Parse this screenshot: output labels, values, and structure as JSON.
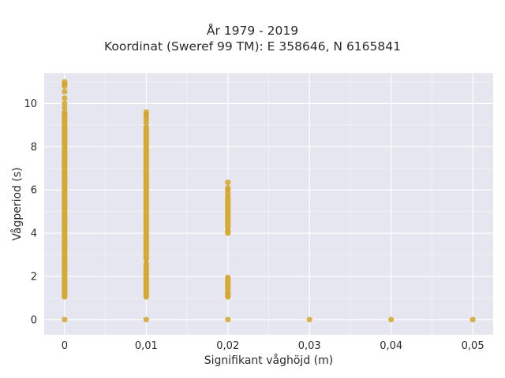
{
  "chart_data": {
    "type": "scatter",
    "title": "År 1979 - 2019",
    "subtitle": "Koordinat (Sweref 99 TM): E 358646, N 6165841",
    "xlabel": "Signifikant våghöjd (m)",
    "ylabel": "Vågperiod (s)",
    "xlim": [
      -0.0025,
      0.0525
    ],
    "ylim": [
      -0.7,
      11.4
    ],
    "xticks": [
      0,
      0.01,
      0.02,
      0.03,
      0.04,
      0.05
    ],
    "xtick_labels": [
      "0",
      "0,01",
      "0,02",
      "0,03",
      "0,04",
      "0,05"
    ],
    "yticks": [
      0,
      2,
      4,
      6,
      8,
      10
    ],
    "ytick_labels": [
      "0",
      "2",
      "4",
      "6",
      "8",
      "10"
    ],
    "grid": true,
    "background": "#e5e6ef",
    "marker_color": "#d4a52a",
    "series": [
      {
        "x": 0,
        "dense_ranges": [
          [
            1.05,
            9.5
          ]
        ],
        "points": [
          0,
          9.6,
          9.8,
          10.0,
          10.25,
          10.55,
          10.8,
          10.9,
          11.0
        ]
      },
      {
        "x": 0.01,
        "dense_ranges": [
          [
            1.05,
            2.6
          ],
          [
            2.8,
            8.9
          ]
        ],
        "points": [
          0,
          9.1,
          9.25,
          9.4,
          9.5,
          9.6
        ]
      },
      {
        "x": 0.02,
        "dense_ranges": [
          [
            1.05,
            1.25
          ],
          [
            1.4,
            1.95
          ],
          [
            4.0,
            4.1
          ],
          [
            4.25,
            5.7
          ]
        ],
        "points": [
          0,
          5.85,
          6.0,
          6.1,
          6.35
        ]
      },
      {
        "x": 0.03,
        "dense_ranges": [],
        "points": [
          0
        ]
      },
      {
        "x": 0.04,
        "dense_ranges": [],
        "points": [
          0
        ]
      },
      {
        "x": 0.05,
        "dense_ranges": [],
        "points": [
          0
        ]
      }
    ]
  }
}
